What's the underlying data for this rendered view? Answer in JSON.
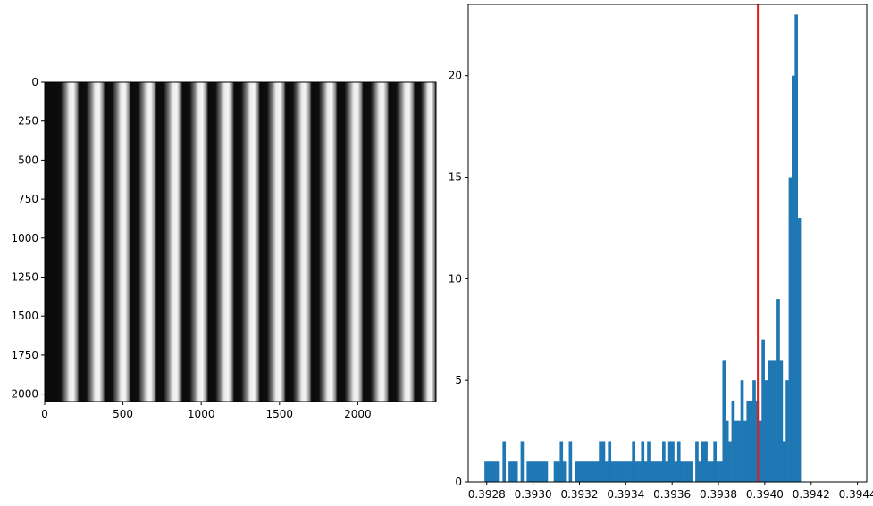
{
  "chart_data": [
    {
      "type": "image",
      "description_free": true,
      "x_ticks": [
        "0",
        "500",
        "1000",
        "1500",
        "2000"
      ],
      "y_ticks": [
        "0",
        "250",
        "500",
        "750",
        "1000",
        "1250",
        "1500",
        "1750",
        "2000"
      ],
      "xlim": [
        0,
        2500
      ],
      "ylim": [
        2048,
        0
      ],
      "stripe_pattern": {
        "period": 165,
        "count": 15,
        "colors": {
          "dark": "#0b0b0b",
          "light": "#f2f2f2"
        }
      }
    },
    {
      "type": "bar",
      "x_ticks": [
        "0.3928",
        "0.3930",
        "0.3932",
        "0.3934",
        "0.3936",
        "0.3938",
        "0.3940",
        "0.3942",
        "0.3944"
      ],
      "y_ticks": [
        "0",
        "5",
        "10",
        "15",
        "20"
      ],
      "xlim": [
        0.39272,
        0.39444
      ],
      "ylim": [
        0,
        23.5
      ],
      "bar_color": "#1f77b4",
      "vline": {
        "x": 0.39397,
        "color": "#e41a1c"
      },
      "bins": [
        {
          "x0": 0.39279,
          "h": 1
        },
        {
          "x0": 0.392803,
          "h": 1
        },
        {
          "x0": 0.392816,
          "h": 1
        },
        {
          "x0": 0.392829,
          "h": 1
        },
        {
          "x0": 0.392842,
          "h": 1
        },
        {
          "x0": 0.392868,
          "h": 2
        },
        {
          "x0": 0.392894,
          "h": 1
        },
        {
          "x0": 0.392907,
          "h": 1
        },
        {
          "x0": 0.39292,
          "h": 1
        },
        {
          "x0": 0.392946,
          "h": 2
        },
        {
          "x0": 0.392972,
          "h": 1
        },
        {
          "x0": 0.392985,
          "h": 1
        },
        {
          "x0": 0.392998,
          "h": 1
        },
        {
          "x0": 0.393011,
          "h": 1
        },
        {
          "x0": 0.393024,
          "h": 1
        },
        {
          "x0": 0.393037,
          "h": 1
        },
        {
          "x0": 0.39305,
          "h": 1
        },
        {
          "x0": 0.393089,
          "h": 1
        },
        {
          "x0": 0.393102,
          "h": 1
        },
        {
          "x0": 0.393115,
          "h": 2
        },
        {
          "x0": 0.393128,
          "h": 1
        },
        {
          "x0": 0.393154,
          "h": 2
        },
        {
          "x0": 0.39318,
          "h": 1
        },
        {
          "x0": 0.393193,
          "h": 1
        },
        {
          "x0": 0.393206,
          "h": 1
        },
        {
          "x0": 0.393219,
          "h": 1
        },
        {
          "x0": 0.393232,
          "h": 1
        },
        {
          "x0": 0.393245,
          "h": 1
        },
        {
          "x0": 0.393258,
          "h": 1
        },
        {
          "x0": 0.393271,
          "h": 1
        },
        {
          "x0": 0.393284,
          "h": 2
        },
        {
          "x0": 0.393297,
          "h": 2
        },
        {
          "x0": 0.39331,
          "h": 1
        },
        {
          "x0": 0.393323,
          "h": 2
        },
        {
          "x0": 0.393336,
          "h": 1
        },
        {
          "x0": 0.393349,
          "h": 1
        },
        {
          "x0": 0.393362,
          "h": 1
        },
        {
          "x0": 0.393375,
          "h": 1
        },
        {
          "x0": 0.393388,
          "h": 1
        },
        {
          "x0": 0.393401,
          "h": 1
        },
        {
          "x0": 0.393414,
          "h": 1
        },
        {
          "x0": 0.393427,
          "h": 2
        },
        {
          "x0": 0.39344,
          "h": 1
        },
        {
          "x0": 0.393453,
          "h": 1
        },
        {
          "x0": 0.393466,
          "h": 2
        },
        {
          "x0": 0.393479,
          "h": 1
        },
        {
          "x0": 0.393492,
          "h": 2
        },
        {
          "x0": 0.393505,
          "h": 1
        },
        {
          "x0": 0.393518,
          "h": 1
        },
        {
          "x0": 0.393531,
          "h": 1
        },
        {
          "x0": 0.393544,
          "h": 1
        },
        {
          "x0": 0.393557,
          "h": 2
        },
        {
          "x0": 0.39357,
          "h": 1
        },
        {
          "x0": 0.393583,
          "h": 2
        },
        {
          "x0": 0.393596,
          "h": 2
        },
        {
          "x0": 0.393609,
          "h": 1
        },
        {
          "x0": 0.393622,
          "h": 2
        },
        {
          "x0": 0.393635,
          "h": 1
        },
        {
          "x0": 0.393648,
          "h": 1
        },
        {
          "x0": 0.393661,
          "h": 1
        },
        {
          "x0": 0.393674,
          "h": 1
        },
        {
          "x0": 0.3937,
          "h": 2
        },
        {
          "x0": 0.393713,
          "h": 1
        },
        {
          "x0": 0.393726,
          "h": 2
        },
        {
          "x0": 0.393739,
          "h": 2
        },
        {
          "x0": 0.393752,
          "h": 1
        },
        {
          "x0": 0.393765,
          "h": 1
        },
        {
          "x0": 0.393778,
          "h": 2
        },
        {
          "x0": 0.393791,
          "h": 1
        },
        {
          "x0": 0.393804,
          "h": 1
        },
        {
          "x0": 0.393817,
          "h": 6
        },
        {
          "x0": 0.39383,
          "h": 3
        },
        {
          "x0": 0.393843,
          "h": 2
        },
        {
          "x0": 0.393856,
          "h": 4
        },
        {
          "x0": 0.393869,
          "h": 3
        },
        {
          "x0": 0.393882,
          "h": 3
        },
        {
          "x0": 0.393895,
          "h": 5
        },
        {
          "x0": 0.393908,
          "h": 3
        },
        {
          "x0": 0.393921,
          "h": 4
        },
        {
          "x0": 0.393934,
          "h": 4
        },
        {
          "x0": 0.393947,
          "h": 5
        },
        {
          "x0": 0.39396,
          "h": 4
        },
        {
          "x0": 0.393973,
          "h": 3
        },
        {
          "x0": 0.393986,
          "h": 7
        },
        {
          "x0": 0.393999,
          "h": 5
        },
        {
          "x0": 0.394012,
          "h": 6
        },
        {
          "x0": 0.394025,
          "h": 6
        },
        {
          "x0": 0.394038,
          "h": 6
        },
        {
          "x0": 0.394051,
          "h": 9
        },
        {
          "x0": 0.394064,
          "h": 6
        },
        {
          "x0": 0.394077,
          "h": 2
        },
        {
          "x0": 0.39409,
          "h": 5
        },
        {
          "x0": 0.394103,
          "h": 15
        },
        {
          "x0": 0.394116,
          "h": 20
        },
        {
          "x0": 0.394129,
          "h": 23
        },
        {
          "x0": 0.394142,
          "h": 13
        }
      ],
      "bin_width": 1.3e-05
    }
  ]
}
